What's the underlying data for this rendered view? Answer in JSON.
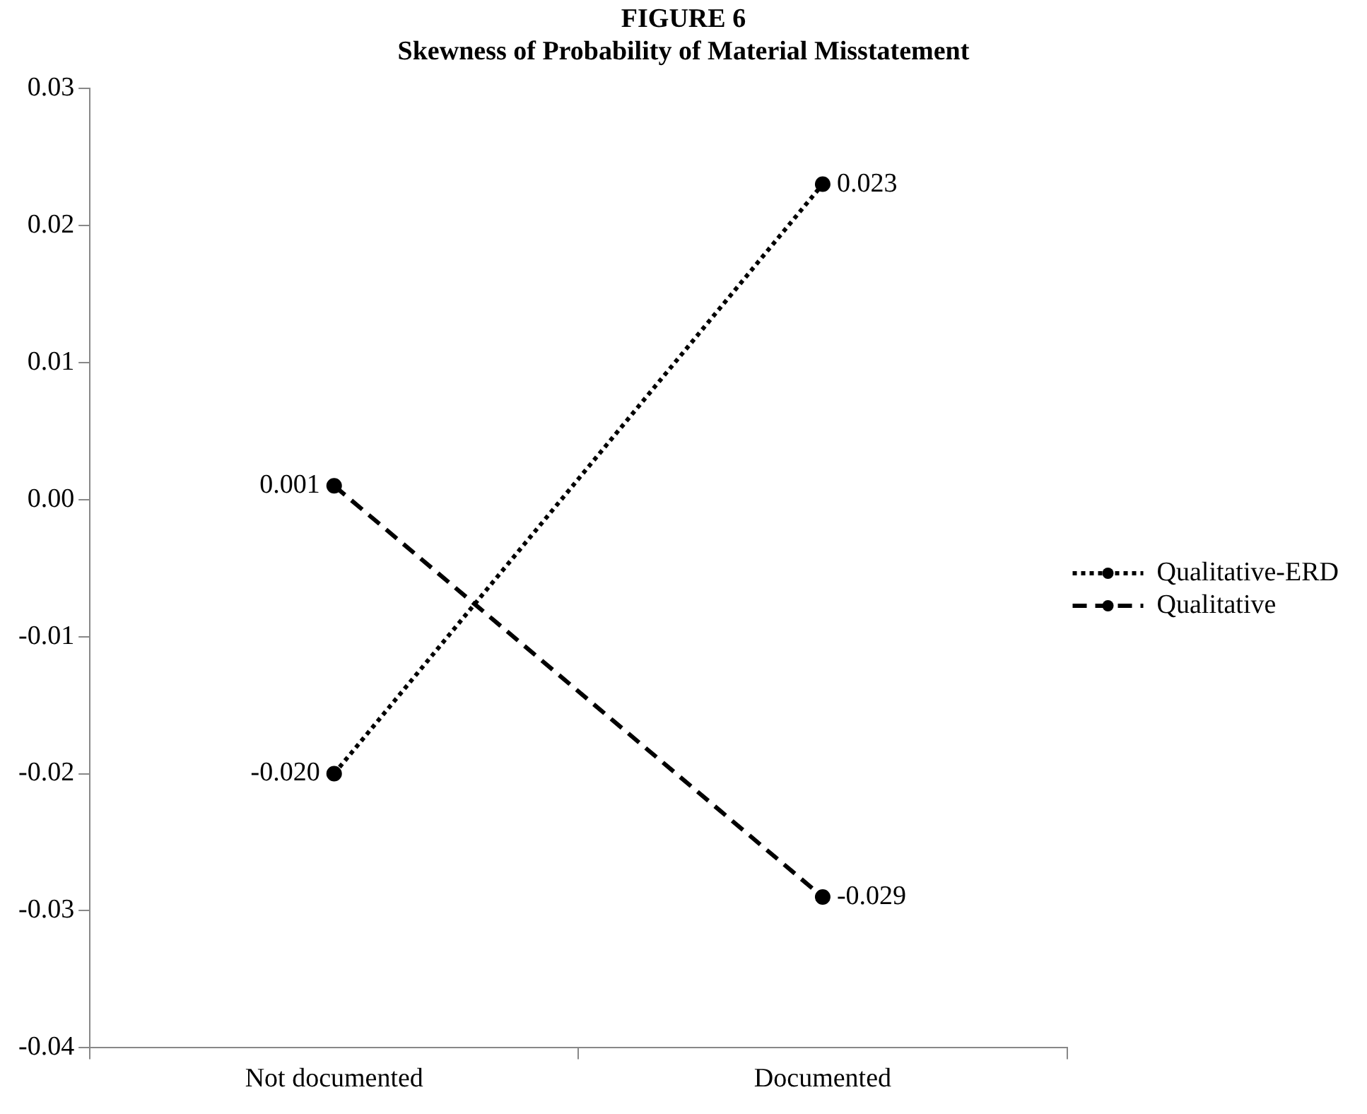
{
  "chart_data": {
    "type": "line",
    "title": "FIGURE 6",
    "subtitle": "Skewness of Probability of Material Misstatement",
    "categories": [
      "Not documented",
      "Documented"
    ],
    "series": [
      {
        "name": "Qualitative-ERD",
        "color": "#000000",
        "values": [
          -0.02,
          0.023
        ],
        "value_labels": [
          "-0.020",
          "0.023"
        ],
        "line_style": "dotted"
      },
      {
        "name": "Qualitative",
        "color": "#000000",
        "values": [
          0.001,
          -0.029
        ],
        "value_labels": [
          "0.001",
          "-0.029"
        ],
        "line_style": "dashed"
      }
    ],
    "ylim": [
      -0.04,
      0.03
    ],
    "yticks": [
      -0.04,
      -0.03,
      -0.02,
      -0.01,
      {
        "value": 0,
        "label": "0.00"
      },
      0.01,
      0.02,
      0.03
    ],
    "grid": false,
    "legend": "right",
    "marker": "circle"
  }
}
